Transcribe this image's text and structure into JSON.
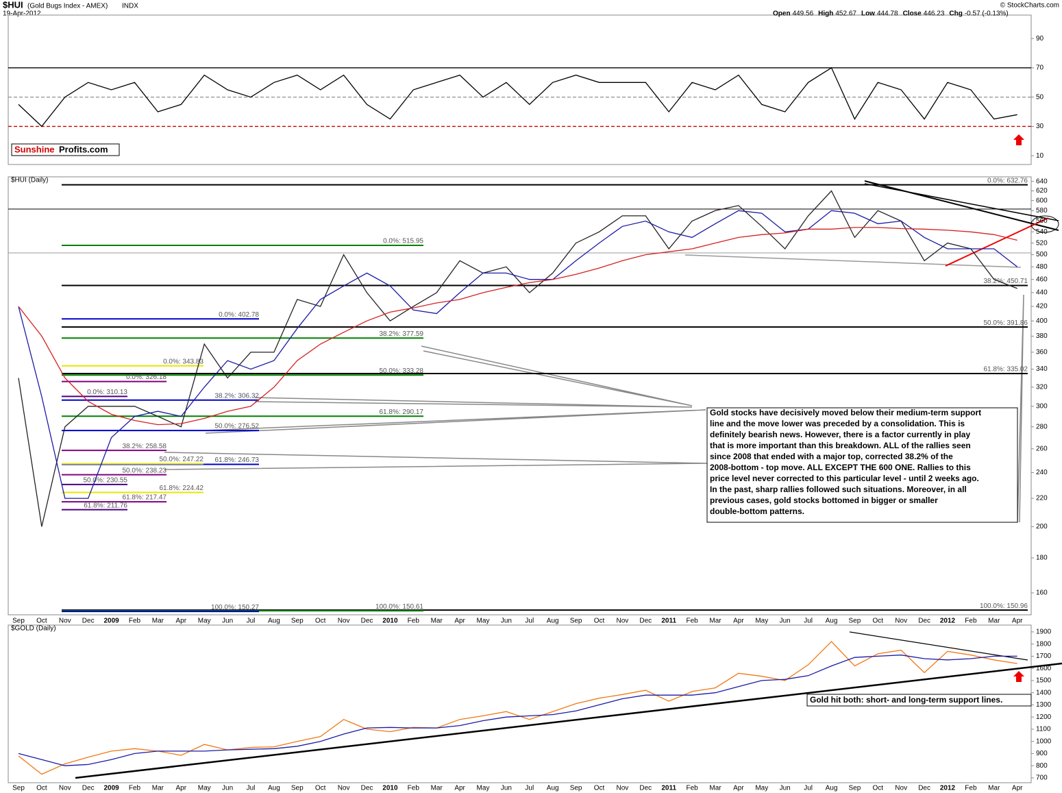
{
  "header": {
    "symbol": "$HUI",
    "description": "(Gold Bugs Index - AMEX)",
    "exchange": "INDX",
    "date": "19-Apr-2012",
    "copyright": "© StockCharts.com",
    "quote": [
      {
        "label": "Open",
        "value": 449.56
      },
      {
        "label": "High",
        "value": 452.67
      },
      {
        "label": "Low",
        "value": 444.78
      },
      {
        "label": "Close",
        "value": 446.23
      },
      {
        "label": "Chg",
        "value": "-0.57 (-0.13%)"
      }
    ]
  },
  "logo": {
    "part1": "Sunshine",
    "part2": "Profits.com"
  },
  "chart_data": [
    {
      "type": "line",
      "ylim": [
        4,
        106
      ],
      "yticks": [
        10,
        30,
        50,
        70,
        90
      ],
      "hlines": [
        {
          "value": 70,
          "color": "#000000",
          "dash": false
        },
        {
          "value": 50,
          "color": "#999999",
          "dash": true
        },
        {
          "value": 30,
          "color": "#cc0000",
          "dash": true
        }
      ],
      "series": [
        {
          "color": "#000000",
          "values": [
            45,
            30,
            50,
            60,
            55,
            60,
            40,
            45,
            65,
            55,
            50,
            60,
            65,
            55,
            65,
            45,
            35,
            55,
            60,
            65,
            50,
            60,
            45,
            60,
            65,
            60,
            60,
            60,
            40,
            60,
            55,
            65,
            45,
            40,
            60,
            70,
            35,
            60,
            55,
            35,
            60,
            55,
            35,
            38
          ]
        }
      ]
    },
    {
      "type": "line",
      "title": "$HUI (Daily)",
      "log": true,
      "ylim": [
        148.6,
        650
      ],
      "yticks": [
        160,
        180,
        200,
        220,
        240,
        260,
        280,
        300,
        320,
        340,
        360,
        380,
        400,
        420,
        440,
        460,
        480,
        500,
        520,
        540,
        560,
        580,
        600,
        620,
        640
      ],
      "categories": [
        "Sep",
        "Oct",
        "Nov",
        "Dec",
        "2009",
        "Feb",
        "Mar",
        "Apr",
        "May",
        "Jun",
        "Jul",
        "Aug",
        "Sep",
        "Oct",
        "Nov",
        "Dec",
        "2010",
        "Feb",
        "Mar",
        "Apr",
        "May",
        "Jun",
        "Jul",
        "Aug",
        "Sep",
        "Oct",
        "Nov",
        "Dec",
        "2011",
        "Feb",
        "Mar",
        "Apr",
        "May",
        "Jun",
        "Jul",
        "Aug",
        "Sep",
        "Oct",
        "Nov",
        "Dec",
        "2012",
        "Feb",
        "Mar",
        "Apr"
      ],
      "series": [
        {
          "color": "#222222",
          "values": [
            330,
            200,
            280,
            300,
            300,
            300,
            290,
            280,
            370,
            330,
            360,
            360,
            430,
            420,
            500,
            440,
            400,
            420,
            440,
            490,
            470,
            480,
            440,
            470,
            520,
            540,
            570,
            570,
            510,
            560,
            580,
            590,
            550,
            510,
            570,
            620,
            530,
            580,
            560,
            490,
            520,
            510,
            460,
            446.23
          ]
        },
        {
          "color": "#1a1aa6",
          "values": [
            420,
            310,
            220,
            220,
            270,
            290,
            295,
            290,
            320,
            350,
            340,
            350,
            390,
            430,
            450,
            470,
            450,
            415,
            410,
            440,
            470,
            470,
            460,
            460,
            490,
            520,
            550,
            560,
            540,
            530,
            555,
            580,
            575,
            540,
            545,
            580,
            575,
            555,
            560,
            530,
            510,
            510,
            510,
            480
          ]
        },
        {
          "color": "#d42020",
          "values": [
            420,
            380,
            330,
            305,
            292,
            286,
            282,
            283,
            288,
            295,
            300,
            320,
            350,
            370,
            385,
            400,
            412,
            418,
            425,
            430,
            440,
            448,
            455,
            460,
            468,
            478,
            490,
            500,
            505,
            510,
            520,
            530,
            535,
            538,
            545,
            545,
            548,
            548,
            546,
            545,
            543,
            540,
            535,
            525
          ]
        }
      ],
      "levels": [
        {
          "label": "0.0%: 632.76",
          "value": 632.76,
          "color": "#000000"
        },
        {
          "label": "38.2%: 450.71",
          "value": 450.71,
          "color": "#000000"
        },
        {
          "label": "50.0%: 391.86",
          "value": 391.86,
          "color": "#000000"
        },
        {
          "label": "61.8%: 335.02",
          "value": 335.02,
          "color": "#000000"
        },
        {
          "label": "100.0%: 150.96",
          "value": 150.96,
          "color": "#000000"
        },
        {
          "label": "0.0%: 515.95",
          "value": 515.95,
          "color": "#008000"
        },
        {
          "label": "38.2%: 377.59",
          "value": 377.59,
          "color": "#008000"
        },
        {
          "label": "50.0%: 333.28",
          "value": 333.28,
          "color": "#008000"
        },
        {
          "label": "61.8%: 290.17",
          "value": 290.17,
          "color": "#008000"
        },
        {
          "label": "100.0%: 150.61",
          "value": 150.61,
          "color": "#008000"
        },
        {
          "label": "0.0%: 402.78",
          "value": 402.78,
          "color": "#0000cc"
        },
        {
          "label": "38.2%: 306.32",
          "value": 306.32,
          "color": "#0000cc"
        },
        {
          "label": "50.0%: 276.52",
          "value": 276.52,
          "color": "#0000cc"
        },
        {
          "label": "61.8%: 246.73",
          "value": 246.73,
          "color": "#0000cc"
        },
        {
          "label": "100.0%: 150.27",
          "value": 150.27,
          "color": "#0000cc"
        },
        {
          "label": "0.0%: 343.83",
          "value": 343.83,
          "color": "#e6e600"
        },
        {
          "label": "50.0%: 247.22",
          "value": 247.22,
          "color": "#e6e600"
        },
        {
          "label": "61.8%: 224.42",
          "value": 224.42,
          "color": "#e6e600"
        },
        {
          "label": "0.0%: 326.18",
          "value": 326.18,
          "color": "#800080"
        },
        {
          "label": "38.2%: 258.58",
          "value": 258.58,
          "color": "#800080"
        },
        {
          "label": "50.0%: 238.23",
          "value": 238.23,
          "color": "#800080"
        },
        {
          "label": "61.8%: 217.47",
          "value": 217.47,
          "color": "#800080"
        },
        {
          "label": "0.0%: 310.13",
          "value": 310.13,
          "color": "#4b0082"
        },
        {
          "label": "50.0%: 230.55",
          "value": 230.55,
          "color": "#4b0082"
        },
        {
          "label": "61.8%: 211.76",
          "value": 211.76,
          "color": "#4b0082"
        }
      ],
      "annotation": [
        "Gold stocks have decisively moved below their medium-term support",
        "line and the move lower was preceded by a consolidation. This is",
        "definitely bearish news. However, there is a factor currently in play",
        "that is more important than this breakdown. ALL of the rallies seen",
        "since 2008 that ended with a major top, corrected 38.2% of the",
        "2008-bottom - top move. ALL EXCEPT THE 600 ONE. Rallies to this",
        "price level never corrected to this particular level - until 2 weeks ago.",
        "In the past, sharp rallies followed such situations. Moreover, in all",
        "previous cases, gold stocks bottomed in bigger or smaller",
        "double-bottom patterns."
      ]
    },
    {
      "type": "line",
      "title": "$GOLD (Daily)",
      "ylim": [
        660,
        1956
      ],
      "yticks": [
        700,
        800,
        900,
        1000,
        1100,
        1200,
        1300,
        1400,
        1500,
        1600,
        1700,
        1800,
        1900
      ],
      "categories": [
        "Sep",
        "Oct",
        "Nov",
        "Dec",
        "2009",
        "Feb",
        "Mar",
        "Apr",
        "May",
        "Jun",
        "Jul",
        "Aug",
        "Sep",
        "Oct",
        "Nov",
        "Dec",
        "2010",
        "Feb",
        "Mar",
        "Apr",
        "May",
        "Jun",
        "Jul",
        "Aug",
        "Sep",
        "Oct",
        "Nov",
        "Dec",
        "2011",
        "Feb",
        "Mar",
        "Apr",
        "May",
        "Jun",
        "Jul",
        "Aug",
        "Sep",
        "Oct",
        "Nov",
        "Dec",
        "2012",
        "Feb",
        "Mar",
        "Apr"
      ],
      "series": [
        {
          "color": "#f07814",
          "values": [
            880,
            730,
            815,
            870,
            920,
            940,
            920,
            885,
            975,
            930,
            950,
            955,
            1000,
            1040,
            1180,
            1100,
            1080,
            1115,
            1110,
            1180,
            1210,
            1245,
            1180,
            1245,
            1310,
            1355,
            1385,
            1420,
            1330,
            1410,
            1440,
            1560,
            1535,
            1500,
            1630,
            1820,
            1620,
            1720,
            1750,
            1565,
            1740,
            1710,
            1670,
            1640
          ]
        },
        {
          "color": "#1a1aa6",
          "values": [
            900,
            850,
            800,
            810,
            850,
            900,
            920,
            920,
            920,
            930,
            935,
            940,
            960,
            1000,
            1060,
            1110,
            1115,
            1110,
            1110,
            1130,
            1170,
            1200,
            1210,
            1220,
            1250,
            1300,
            1350,
            1380,
            1380,
            1380,
            1400,
            1450,
            1500,
            1510,
            1540,
            1620,
            1690,
            1700,
            1710,
            1680,
            1670,
            1680,
            1700,
            1700
          ]
        }
      ],
      "annotation": [
        "Gold hit both: short- and long-term support lines."
      ]
    }
  ]
}
